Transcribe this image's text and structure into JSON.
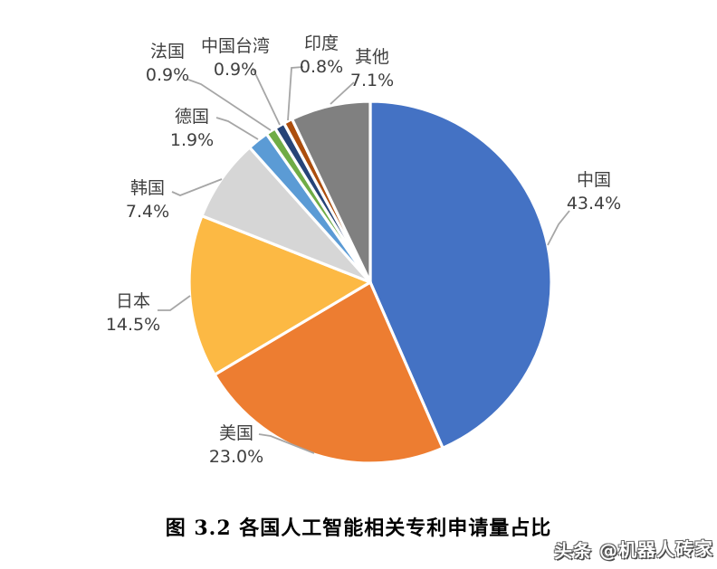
{
  "chart_data": {
    "type": "pie",
    "title": "图 3.2 各国人工智能相关专利申请量占比",
    "start_angle_deg": 0,
    "direction": "clockwise",
    "slice_border_color": "#ffffff",
    "leader_line_color": "#A6A6A6",
    "label_text_color": "#3F3F3F",
    "slices": [
      {
        "id": "china",
        "label": "中国",
        "value": 43.4,
        "pct_label": "43.4%",
        "color": "#4472C4"
      },
      {
        "id": "usa",
        "label": "美国",
        "value": 23.0,
        "pct_label": "23.0%",
        "color": "#ED7D31"
      },
      {
        "id": "japan",
        "label": "日本",
        "value": 14.5,
        "pct_label": "14.5%",
        "color": "#FCB944"
      },
      {
        "id": "korea",
        "label": "韩国",
        "value": 7.4,
        "pct_label": "7.4%",
        "color": "#D6D6D6"
      },
      {
        "id": "germany",
        "label": "德国",
        "value": 1.9,
        "pct_label": "1.9%",
        "color": "#5B9BD5"
      },
      {
        "id": "france",
        "label": "法国",
        "value": 0.9,
        "pct_label": "0.9%",
        "color": "#6FAC46"
      },
      {
        "id": "taiwan",
        "label": "中国台湾",
        "value": 0.9,
        "pct_label": "0.9%",
        "color": "#264478"
      },
      {
        "id": "india",
        "label": "印度",
        "value": 0.8,
        "pct_label": "0.8%",
        "color": "#AC4E0D"
      },
      {
        "id": "others",
        "label": "其他",
        "value": 7.1,
        "pct_label": "7.1%",
        "color": "#808080"
      }
    ]
  },
  "watermark": {
    "text": "头条 @机器人砖家"
  }
}
